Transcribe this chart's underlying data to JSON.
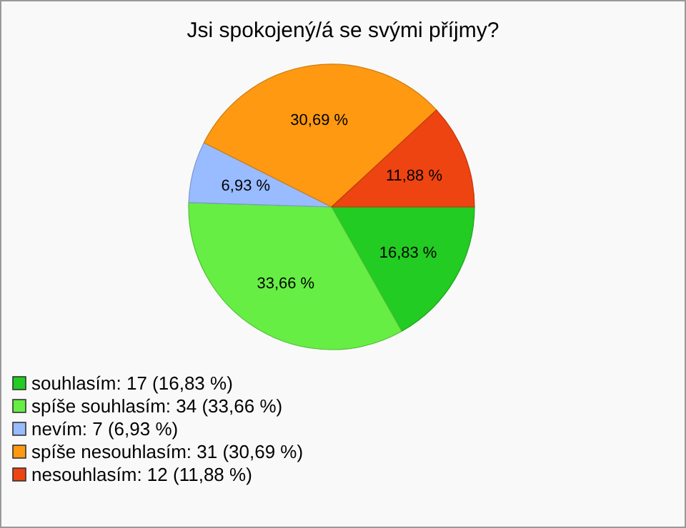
{
  "chart_data": {
    "type": "pie",
    "title": "Jsi spokojený/á se svými příjmy?",
    "categories": [
      "souhlasím: 17 (16,83 %)",
      "spíše souhlasím: 34 (33,66 %)",
      "nevím: 7 (6,93 %)",
      "spíše nesouhlasím: 31 (30,69 %)",
      "nesouhlasím: 12 (11,88 %)"
    ],
    "values": [
      16.83,
      33.66,
      6.93,
      30.69,
      11.88
    ],
    "value_labels": [
      "16,83 %",
      "33,66 %",
      "6,93 %",
      "30,69 %",
      "11,88 %"
    ],
    "colors": [
      "#22cc22",
      "#66ee44",
      "#99bbff",
      "#ff9911",
      "#ee4411"
    ],
    "legend": "bottom left"
  }
}
